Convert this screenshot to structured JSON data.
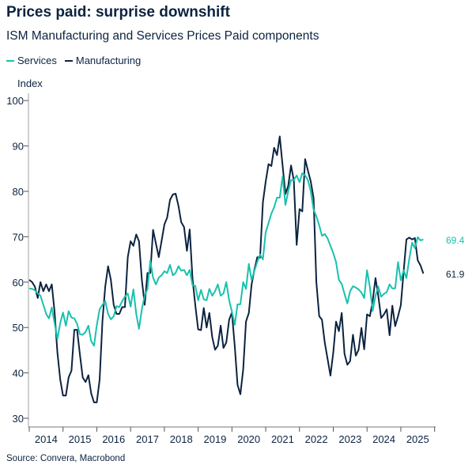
{
  "header": {
    "title": "Prices paid: surprise downshift",
    "subtitle": "ISM Manufacturing and Services Prices Paid components"
  },
  "footer": {
    "source": "Source: Convera, Macrobond"
  },
  "colors": {
    "services": "#19c1ad",
    "manufacturing": "#0c2340"
  },
  "chart_data": {
    "type": "line",
    "title": "Prices paid: surprise downshift",
    "subtitle": "ISM Manufacturing and Services Prices Paid components",
    "ylabel": "Index",
    "xlabel": "",
    "ylim": [
      30,
      100
    ],
    "yticks": [
      30,
      40,
      50,
      60,
      70,
      80,
      90,
      100
    ],
    "xticks": [
      "2014",
      "2015",
      "2016",
      "2017",
      "2018",
      "2019",
      "2020",
      "2021",
      "2022",
      "2023",
      "2024",
      "2025"
    ],
    "x_start": "2014-01",
    "x_end": "2025-09",
    "frequency": "monthly",
    "legend": "top-left",
    "grid": false,
    "series": [
      {
        "name": "Services",
        "color": "#19c1ad",
        "end_label": "69.4",
        "values": [
          58.6,
          58.5,
          58.2,
          57.5,
          57,
          55,
          53,
          52,
          54.4,
          51,
          47.5,
          51,
          53.3,
          50.4,
          53.6,
          52.2,
          52,
          50.8,
          48.5,
          48.4,
          49,
          50.4,
          47,
          46,
          50.5,
          54,
          55,
          55.8,
          53,
          51.8,
          52.5,
          54.7,
          54.5,
          55.8,
          56.8,
          57.5,
          54.6,
          58.4,
          53,
          49.7,
          54,
          57,
          58.5,
          64.7,
          61,
          59.5,
          61,
          61.5,
          62.4,
          62,
          63.8,
          61.5,
          62,
          63.5,
          62.5,
          62.7,
          61.5,
          62.7,
          59.3,
          59.2,
          56,
          58.3,
          56.2,
          56,
          58.5,
          57,
          58,
          59.5,
          57,
          57.5,
          60,
          56,
          53.5,
          50.6,
          55.1,
          55.1,
          60,
          58.5,
          64,
          60.5,
          62.5,
          64.5,
          66.1,
          65,
          71,
          73,
          75.1,
          76.5,
          78.6,
          78.6,
          83.3,
          77,
          80,
          82.5,
          82.5,
          83.5,
          82,
          84,
          83.5,
          82.5,
          80,
          76,
          74.5,
          72.5,
          70.2,
          70.6,
          69.6,
          68,
          66.4,
          64.4,
          60.5,
          59.6,
          57.4,
          55.3,
          58,
          59.1,
          58.8,
          58.4,
          57.7,
          56.5,
          62.6,
          58.9,
          53.6,
          57,
          59,
          56.8,
          57.4,
          57.8,
          59.5,
          58.6,
          58.6,
          64.4,
          60.4,
          62.6,
          60.9,
          65.1,
          68.7,
          67.5,
          69.9,
          69.2,
          69.4
        ]
      },
      {
        "name": "Manufacturing",
        "color": "#0c2340",
        "end_label": "61.9",
        "values": [
          60.5,
          60,
          59,
          56.5,
          60,
          58,
          59.5,
          58,
          59.5,
          53.5,
          44.5,
          38.5,
          35,
          35,
          39,
          40.5,
          49.5,
          49.5,
          44,
          39,
          38,
          39.5,
          35.5,
          33.5,
          33.5,
          38.5,
          51.5,
          59,
          63.5,
          60.5,
          55,
          53,
          53,
          54.5,
          54.5,
          65.5,
          69,
          68,
          70.5,
          69,
          60.5,
          55,
          62,
          62,
          71.5,
          68.5,
          65.5,
          69,
          72.7,
          74.2,
          78.1,
          79.3,
          79.5,
          76.8,
          73.2,
          72.1,
          66.9,
          71.6,
          60.7,
          54.9,
          49.6,
          49.4,
          54.3,
          50,
          53.2,
          47.9,
          45.1,
          46,
          50.4,
          45.5,
          46.7,
          51.7,
          53.3,
          45.9,
          37.4,
          35.3,
          40.8,
          51.3,
          53.2,
          59.5,
          62.8,
          65.5,
          65.4,
          77.6,
          82.1,
          86,
          85.6,
          89.6,
          88,
          92.1,
          85.7,
          79.4,
          81.2,
          85.7,
          82.4,
          68.2,
          76.1,
          75.6,
          87.1,
          84.6,
          82.2,
          78.5,
          60,
          52.5,
          51.7,
          46.6,
          43,
          39.4,
          44.5,
          51.3,
          49.2,
          53.2,
          44.2,
          41.8,
          42.6,
          48.4,
          43.8,
          45.1,
          49.9,
          45.2,
          52.9,
          52.5,
          55.8,
          60.9,
          57,
          52.1,
          52.9,
          54,
          48.3,
          54.8,
          50.3,
          52.5,
          54.9,
          62.4,
          69.4,
          69.8,
          69.4,
          69.7,
          64.8,
          63.7,
          61.9
        ]
      }
    ]
  }
}
